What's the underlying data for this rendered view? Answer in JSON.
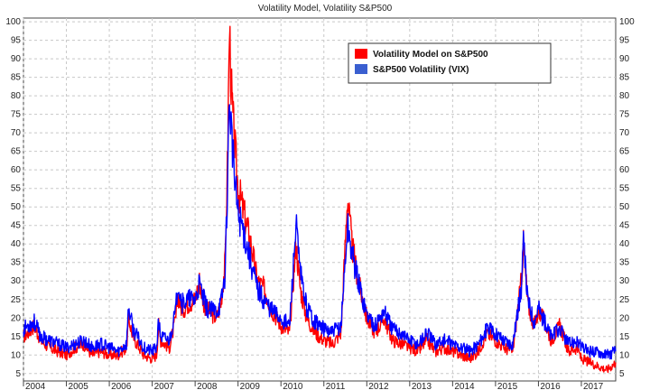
{
  "chart_data": {
    "type": "line",
    "title": "Volatility Model, Volatility S&P500",
    "ylim": [
      3,
      101
    ],
    "xlim": [
      2004.0,
      2017.8
    ],
    "y_ticks": [
      5,
      10,
      15,
      20,
      25,
      30,
      35,
      40,
      45,
      50,
      55,
      60,
      65,
      70,
      75,
      80,
      85,
      90,
      95,
      100
    ],
    "x_tick_labels": [
      "2004",
      "2005",
      "2006",
      "2007",
      "2008",
      "2009",
      "2010",
      "2011",
      "2012",
      "2013",
      "2014",
      "2015",
      "2016",
      "2017"
    ],
    "grid": true,
    "legend_position": "top-right",
    "series": [
      {
        "name": "Volatility Model on S&P500",
        "color": "#ff0000",
        "points": [
          [
            2004.0,
            15
          ],
          [
            2004.1,
            16
          ],
          [
            2004.25,
            18
          ],
          [
            2004.4,
            14
          ],
          [
            2004.6,
            12
          ],
          [
            2004.8,
            11
          ],
          [
            2005.0,
            10
          ],
          [
            2005.2,
            12
          ],
          [
            2005.4,
            13
          ],
          [
            2005.6,
            10
          ],
          [
            2005.8,
            11
          ],
          [
            2006.0,
            10
          ],
          [
            2006.2,
            10
          ],
          [
            2006.4,
            12
          ],
          [
            2006.45,
            20
          ],
          [
            2006.55,
            15
          ],
          [
            2006.8,
            10
          ],
          [
            2007.0,
            9
          ],
          [
            2007.1,
            10
          ],
          [
            2007.15,
            18
          ],
          [
            2007.2,
            14
          ],
          [
            2007.4,
            12
          ],
          [
            2007.55,
            20
          ],
          [
            2007.6,
            26
          ],
          [
            2007.7,
            22
          ],
          [
            2007.85,
            24
          ],
          [
            2008.0,
            25
          ],
          [
            2008.1,
            30
          ],
          [
            2008.2,
            24
          ],
          [
            2008.3,
            22
          ],
          [
            2008.5,
            20
          ],
          [
            2008.6,
            24
          ],
          [
            2008.7,
            35
          ],
          [
            2008.75,
            60
          ],
          [
            2008.8,
            98
          ],
          [
            2008.85,
            80
          ],
          [
            2008.9,
            70
          ],
          [
            2009.0,
            55
          ],
          [
            2009.1,
            50
          ],
          [
            2009.2,
            45
          ],
          [
            2009.3,
            40
          ],
          [
            2009.45,
            30
          ],
          [
            2009.6,
            28
          ],
          [
            2009.8,
            22
          ],
          [
            2010.0,
            18
          ],
          [
            2010.2,
            16
          ],
          [
            2010.35,
            40
          ],
          [
            2010.45,
            28
          ],
          [
            2010.6,
            20
          ],
          [
            2010.8,
            16
          ],
          [
            2011.0,
            14
          ],
          [
            2011.2,
            13
          ],
          [
            2011.4,
            16
          ],
          [
            2011.55,
            53
          ],
          [
            2011.65,
            40
          ],
          [
            2011.8,
            30
          ],
          [
            2012.0,
            20
          ],
          [
            2012.2,
            16
          ],
          [
            2012.4,
            20
          ],
          [
            2012.6,
            14
          ],
          [
            2012.8,
            13
          ],
          [
            2013.0,
            12
          ],
          [
            2013.2,
            11
          ],
          [
            2013.4,
            14
          ],
          [
            2013.6,
            11
          ],
          [
            2013.8,
            12
          ],
          [
            2014.0,
            11
          ],
          [
            2014.2,
            10
          ],
          [
            2014.4,
            9
          ],
          [
            2014.6,
            11
          ],
          [
            2014.8,
            16
          ],
          [
            2015.0,
            14
          ],
          [
            2015.2,
            12
          ],
          [
            2015.4,
            11
          ],
          [
            2015.6,
            30
          ],
          [
            2015.65,
            40
          ],
          [
            2015.75,
            24
          ],
          [
            2015.9,
            18
          ],
          [
            2016.0,
            22
          ],
          [
            2016.1,
            20
          ],
          [
            2016.3,
            14
          ],
          [
            2016.5,
            18
          ],
          [
            2016.7,
            11
          ],
          [
            2016.9,
            12
          ],
          [
            2017.0,
            9
          ],
          [
            2017.2,
            8
          ],
          [
            2017.4,
            7
          ],
          [
            2017.6,
            6
          ],
          [
            2017.8,
            8
          ]
        ]
      },
      {
        "name": "S&P500 Volatility (VIX)",
        "color": "#0000ff",
        "points": [
          [
            2004.0,
            17
          ],
          [
            2004.1,
            18
          ],
          [
            2004.25,
            19
          ],
          [
            2004.4,
            15
          ],
          [
            2004.6,
            14
          ],
          [
            2004.8,
            13
          ],
          [
            2005.0,
            12
          ],
          [
            2005.2,
            13
          ],
          [
            2005.4,
            14
          ],
          [
            2005.6,
            12
          ],
          [
            2005.8,
            13
          ],
          [
            2006.0,
            12
          ],
          [
            2006.2,
            11
          ],
          [
            2006.4,
            13
          ],
          [
            2006.45,
            23
          ],
          [
            2006.55,
            17
          ],
          [
            2006.8,
            12
          ],
          [
            2007.0,
            11
          ],
          [
            2007.1,
            12
          ],
          [
            2007.15,
            19
          ],
          [
            2007.2,
            15
          ],
          [
            2007.4,
            14
          ],
          [
            2007.55,
            22
          ],
          [
            2007.6,
            30
          ],
          [
            2007.7,
            24
          ],
          [
            2007.85,
            25
          ],
          [
            2008.0,
            25
          ],
          [
            2008.1,
            29
          ],
          [
            2008.2,
            25
          ],
          [
            2008.3,
            22
          ],
          [
            2008.5,
            22
          ],
          [
            2008.6,
            24
          ],
          [
            2008.7,
            32
          ],
          [
            2008.75,
            55
          ],
          [
            2008.8,
            80
          ],
          [
            2008.85,
            70
          ],
          [
            2008.9,
            60
          ],
          [
            2009.0,
            48
          ],
          [
            2009.1,
            45
          ],
          [
            2009.2,
            40
          ],
          [
            2009.3,
            35
          ],
          [
            2009.45,
            28
          ],
          [
            2009.6,
            25
          ],
          [
            2009.8,
            22
          ],
          [
            2010.0,
            20
          ],
          [
            2010.2,
            18
          ],
          [
            2010.35,
            45
          ],
          [
            2010.45,
            32
          ],
          [
            2010.6,
            23
          ],
          [
            2010.8,
            19
          ],
          [
            2011.0,
            17
          ],
          [
            2011.2,
            16
          ],
          [
            2011.4,
            18
          ],
          [
            2011.55,
            45
          ],
          [
            2011.65,
            38
          ],
          [
            2011.8,
            30
          ],
          [
            2012.0,
            21
          ],
          [
            2012.2,
            18
          ],
          [
            2012.4,
            22
          ],
          [
            2012.6,
            17
          ],
          [
            2012.8,
            16
          ],
          [
            2013.0,
            14
          ],
          [
            2013.2,
            13
          ],
          [
            2013.4,
            16
          ],
          [
            2013.6,
            13
          ],
          [
            2013.8,
            14
          ],
          [
            2014.0,
            13
          ],
          [
            2014.2,
            12
          ],
          [
            2014.4,
            11
          ],
          [
            2014.6,
            13
          ],
          [
            2014.8,
            17
          ],
          [
            2015.0,
            16
          ],
          [
            2015.2,
            14
          ],
          [
            2015.4,
            13
          ],
          [
            2015.6,
            28
          ],
          [
            2015.65,
            40
          ],
          [
            2015.75,
            25
          ],
          [
            2015.9,
            19
          ],
          [
            2016.0,
            23
          ],
          [
            2016.1,
            20
          ],
          [
            2016.3,
            15
          ],
          [
            2016.5,
            17
          ],
          [
            2016.7,
            13
          ],
          [
            2016.9,
            14
          ],
          [
            2017.0,
            12
          ],
          [
            2017.2,
            11
          ],
          [
            2017.4,
            11
          ],
          [
            2017.6,
            10
          ],
          [
            2017.8,
            11
          ]
        ]
      }
    ]
  }
}
